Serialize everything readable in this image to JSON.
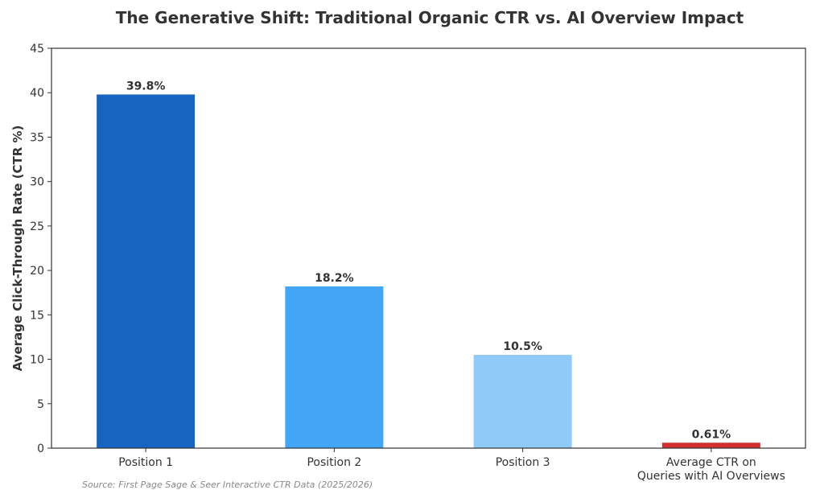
{
  "chart_data": {
    "type": "bar",
    "title": "The Generative Shift: Traditional Organic CTR vs. AI Overview Impact",
    "ylabel": "Average Click-Through Rate (CTR %)",
    "xlabel": "",
    "ylim": [
      0,
      45
    ],
    "yticks": [
      0,
      5,
      10,
      15,
      20,
      25,
      30,
      35,
      40,
      45
    ],
    "grid": false,
    "categories": [
      "Position 1",
      "Position 2",
      "Position 3",
      "Average CTR on Queries with AI Overviews"
    ],
    "category_lines": [
      [
        "Position 1"
      ],
      [
        "Position 2"
      ],
      [
        "Position 3"
      ],
      [
        "Average CTR on",
        "Queries with AI Overviews"
      ]
    ],
    "values": [
      39.8,
      18.2,
      10.5,
      0.61
    ],
    "data_labels": [
      "39.8%",
      "18.2%",
      "10.5%",
      "0.61%"
    ],
    "colors": [
      "#1565c0",
      "#42a5f5",
      "#90caf9",
      "#d32f2f"
    ]
  },
  "source": "Source: First Page Sage & Seer Interactive CTR Data (2025/2026)"
}
